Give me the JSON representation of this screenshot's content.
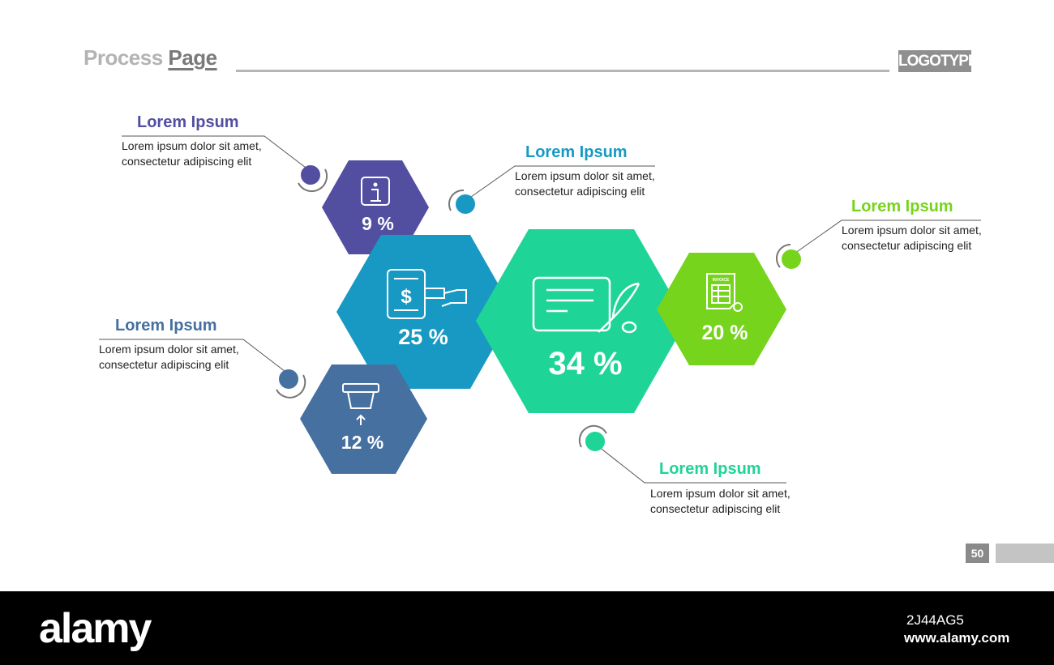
{
  "header": {
    "title_part1": "Process ",
    "title_part2": "Page",
    "logo": "LOGOTYPE"
  },
  "colors": {
    "purple": "#524fa1",
    "blue": "#1899c3",
    "steel": "#45709f",
    "teal": "#1ed497",
    "lime": "#76d41c"
  },
  "hexagons": [
    {
      "value": "9 %",
      "icon": "info-icon",
      "color": "#524fa1"
    },
    {
      "value": "25 %",
      "icon": "mobile-payment-icon",
      "color": "#1899c3"
    },
    {
      "value": "12 %",
      "icon": "atm-card-icon",
      "color": "#45709f"
    },
    {
      "value": "34 %",
      "icon": "contract-signing-icon",
      "color": "#1ed497"
    },
    {
      "value": "20 %",
      "icon": "invoice-icon",
      "color": "#76d41c"
    }
  ],
  "callouts": [
    {
      "title": "Lorem Ipsum",
      "line1": "Lorem ipsum dolor sit amet,",
      "line2": "consectetur adipiscing elit"
    },
    {
      "title": "Lorem Ipsum",
      "line1": "Lorem ipsum dolor sit amet,",
      "line2": "consectetur adipiscing elit"
    },
    {
      "title": "Lorem Ipsum",
      "line1": "Lorem ipsum dolor sit amet,",
      "line2": "consectetur adipiscing elit"
    },
    {
      "title": "Lorem Ipsum",
      "line1": "Lorem ipsum dolor sit amet,",
      "line2": "consectetur adipiscing elit"
    },
    {
      "title": "Lorem Ipsum",
      "line1": "Lorem ipsum dolor sit amet,",
      "line2": "consectetur adipiscing elit"
    }
  ],
  "page_number": "50",
  "footer": {
    "brand": "alamy",
    "image_code": "2J44AG5",
    "url": "www.alamy.com"
  }
}
